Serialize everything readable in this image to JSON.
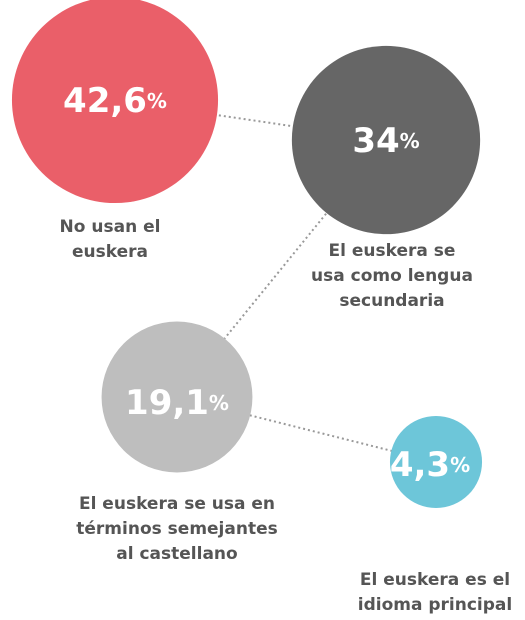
{
  "chart_data": {
    "type": "bubble",
    "categories": [
      [
        "No usan el",
        "euskera"
      ],
      [
        "El euskera se",
        "usa como lengua",
        "secundaria"
      ],
      [
        "El euskera se usa en",
        "términos semejantes",
        "al castellano"
      ],
      [
        "El euskera es el",
        "idioma principal"
      ]
    ],
    "values": [
      42.6,
      34,
      19.1,
      4.3
    ],
    "value_labels": [
      "42,6%",
      "34%",
      "19,1%",
      "4,3%"
    ],
    "colors": [
      "#ea5f69",
      "#666666",
      "#bebebe",
      "#6dc6d9"
    ]
  }
}
